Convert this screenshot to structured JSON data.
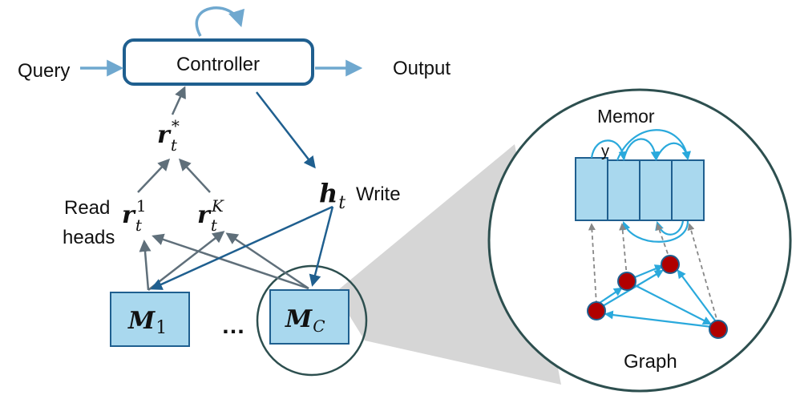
{
  "controller": {
    "label": "Controller"
  },
  "io": {
    "query": "Query",
    "output": "Output"
  },
  "read": {
    "label_line1": "Read",
    "label_line2": "heads",
    "r_star": {
      "base": "r",
      "sub": "t",
      "sup": "*"
    },
    "r_1": {
      "base": "r",
      "sub": "t",
      "sup": "1"
    },
    "r_k": {
      "base": "r",
      "sub": "t",
      "sup": "K"
    }
  },
  "write": {
    "h": {
      "base": "h",
      "sub": "t"
    },
    "label": "Write"
  },
  "memories": {
    "m1": {
      "base": "M",
      "sub": "1"
    },
    "mc": {
      "base": "M",
      "sub": "C"
    },
    "ellipsis": "…"
  },
  "zoom": {
    "memory_label_main": "Memor",
    "memory_label_tail": "y",
    "graph_label": "Graph"
  },
  "colors": {
    "dark_blue": "#1f5f8f",
    "mid_blue": "#3a6f9a",
    "light_arrow": "#6fa8cf",
    "cyan_arrow": "#2aa9dc",
    "box_fill": "#a9d8ee",
    "grey_arrow": "#5f6f7a",
    "node_red": "#b00000",
    "circle_stroke": "#2d4f4f",
    "zoom_cone": "#d6d6d6"
  }
}
